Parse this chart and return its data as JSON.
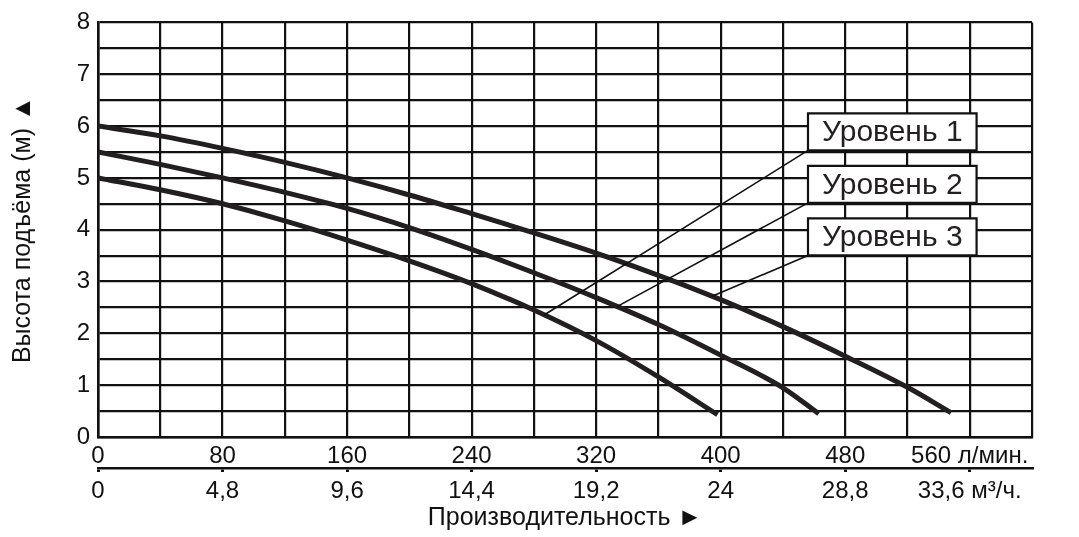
{
  "chart_data": {
    "type": "line",
    "xlabel": "Производительность ►",
    "ylabel": "Высота подъёма (м) ▲",
    "series": [
      {
        "name": "Уровень 1",
        "color": "#231f20",
        "x": [
          0,
          40,
          80,
          120,
          160,
          200,
          240,
          280,
          320,
          360,
          398
        ],
        "values": [
          5.0,
          4.77,
          4.5,
          4.17,
          3.8,
          3.4,
          2.96,
          2.45,
          1.86,
          1.16,
          0.43
        ]
      },
      {
        "name": "Уровень 2",
        "color": "#231f20",
        "x": [
          0,
          40,
          80,
          120,
          160,
          200,
          240,
          280,
          320,
          360,
          400,
          440,
          463
        ],
        "values": [
          5.5,
          5.26,
          5.0,
          4.72,
          4.41,
          4.04,
          3.62,
          3.17,
          2.69,
          2.17,
          1.58,
          0.95,
          0.45
        ]
      },
      {
        "name": "Уровень 3",
        "color": "#231f20",
        "x": [
          0,
          40,
          80,
          120,
          160,
          200,
          240,
          280,
          320,
          360,
          400,
          440,
          480,
          520,
          548
        ],
        "values": [
          6.0,
          5.81,
          5.57,
          5.3,
          5.0,
          4.67,
          4.31,
          3.94,
          3.55,
          3.12,
          2.65,
          2.13,
          1.56,
          0.96,
          0.47
        ]
      }
    ],
    "xlim": [
      0,
      600
    ],
    "xticks": [
      0,
      {
        "value": 40,
        "label": null
      },
      80,
      {
        "value": 120,
        "label": null
      },
      160,
      {
        "value": 200,
        "label": null
      },
      240,
      {
        "value": 280,
        "label": null
      },
      320,
      {
        "value": 360,
        "label": null
      },
      400,
      {
        "value": 440,
        "label": null
      },
      480,
      {
        "value": 520,
        "label": null
      },
      {
        "value": 560,
        "label": "560 л/мин."
      },
      {
        "value": 600,
        "label": null
      }
    ],
    "x2lim": [
      0,
      36
    ],
    "x2ticks": [
      0,
      {
        "value": 4.8,
        "label": "4,8"
      },
      {
        "value": 9.6,
        "label": "9,6"
      },
      {
        "value": 14.4,
        "label": "14,4"
      },
      {
        "value": 19.2,
        "label": "19,2"
      },
      24,
      {
        "value": 28.8,
        "label": "28,8"
      },
      {
        "value": 33.6,
        "label": "33,6 м³/ч."
      }
    ],
    "ylim": [
      0,
      8
    ],
    "yticks": [
      0,
      {
        "value": 0.5,
        "label": null
      },
      1,
      {
        "value": 1.5,
        "label": null
      },
      2,
      {
        "value": 2.5,
        "label": null
      },
      3,
      {
        "value": 3.5,
        "label": null
      },
      4,
      {
        "value": 4.5,
        "label": null
      },
      5,
      {
        "value": 5.5,
        "label": null
      },
      6,
      {
        "value": 6.5,
        "label": null
      },
      7,
      {
        "value": 7.5,
        "label": null
      },
      8
    ],
    "grid": true,
    "marker": "none",
    "line_style": "solid"
  }
}
